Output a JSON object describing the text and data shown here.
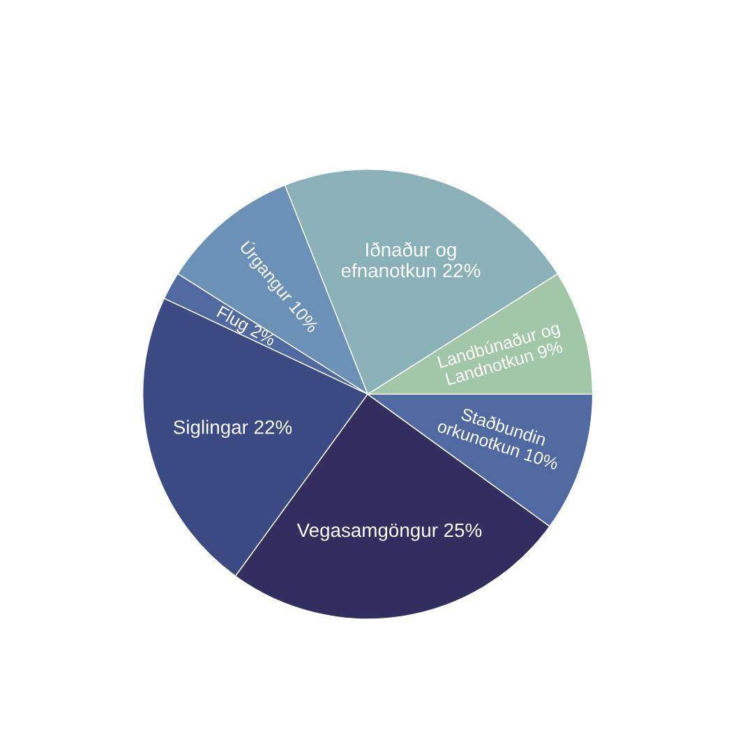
{
  "chart_data": {
    "type": "pie",
    "categories": [
      "Landbúnaður og\nLandnotkun",
      "Iðnaður og\nefnanotkun",
      "Úrgangur",
      "Flug",
      "Siglingar",
      "Vegasamgöngur",
      "Staðbundin\norkunotkun"
    ],
    "values": [
      9,
      22,
      10,
      2,
      22,
      25,
      10
    ],
    "value_labels": [
      "9%",
      "22%",
      "10%",
      "2%",
      "22%",
      "25%",
      "10%"
    ],
    "colors": [
      "#a2c7a8",
      "#8ab1b7",
      "#6b91b6",
      "#5069a0",
      "#3b4a82",
      "#322e5f",
      "#5069a0"
    ]
  }
}
